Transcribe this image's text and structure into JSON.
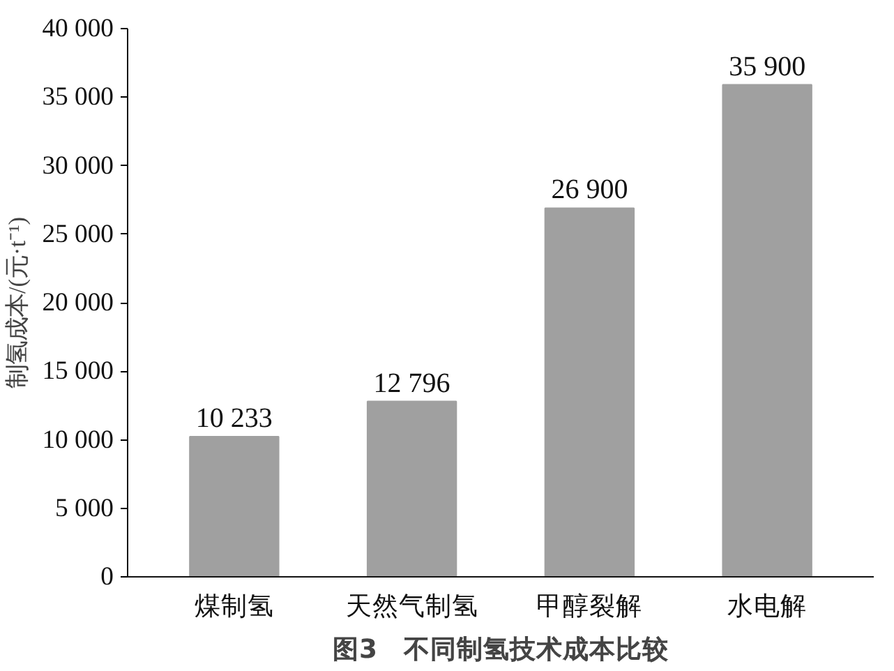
{
  "chart_data": {
    "type": "bar",
    "title": "图3　不同制氢技术成本比较",
    "ylabel": "制氢成本/(元·t⁻¹)",
    "categories": [
      "煤制氢",
      "天然气制氢",
      "甲醇裂解",
      "水电解"
    ],
    "values": [
      10233,
      12796,
      26900,
      35900
    ],
    "value_labels": [
      "10 233",
      "12 796",
      "26 900",
      "35 900"
    ],
    "color": "#a0a0a0",
    "ylim": [
      0,
      40000
    ],
    "yticks": [
      0,
      {
        "value": 5000,
        "label": "5 000"
      },
      {
        "value": 10000,
        "label": "10 000"
      },
      {
        "value": 15000,
        "label": "15 000"
      },
      {
        "value": 20000,
        "label": "20 000"
      },
      {
        "value": 25000,
        "label": "25 000"
      },
      {
        "value": 30000,
        "label": "30 000"
      },
      {
        "value": 35000,
        "label": "35 000"
      },
      {
        "value": 40000,
        "label": "40 000"
      }
    ],
    "grid": false
  }
}
